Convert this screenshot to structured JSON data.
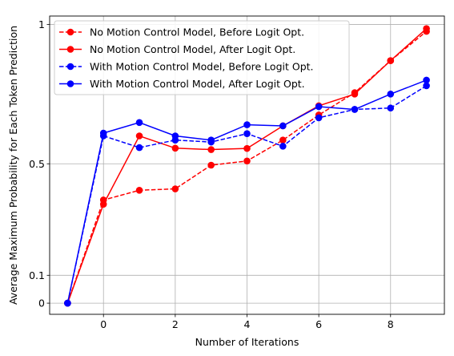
{
  "chart_data": {
    "type": "line",
    "title": "",
    "xlabel": "Number of Iterations",
    "ylabel": "Average Maximum Probability for Each Token Prediction",
    "xlim": [
      -1.5,
      9.5
    ],
    "ylim": [
      -0.04,
      1.03
    ],
    "xticks": [
      0,
      2,
      4,
      6,
      8
    ],
    "xtick_labels": [
      "0",
      "2",
      "4",
      "6",
      "8"
    ],
    "yticks": [
      0,
      0.1,
      0.5,
      1
    ],
    "ytick_labels": [
      "0",
      "0.1",
      "0.5",
      "1"
    ],
    "grid": true,
    "legend_position": "upper-left",
    "x": [
      -1,
      0,
      1,
      2,
      3,
      4,
      5,
      6,
      7,
      8,
      9
    ],
    "series": [
      {
        "name": "No Motion Control Model, Before Logit Opt.",
        "color": "#ff0000",
        "style": "dashed",
        "values": [
          0.0,
          0.37,
          0.405,
          0.41,
          0.495,
          0.51,
          0.585,
          0.675,
          0.755,
          0.87,
          0.975
        ]
      },
      {
        "name": "No Motion Control Model, After Logit Opt.",
        "color": "#ff0000",
        "style": "solid",
        "values": [
          0.0,
          0.355,
          0.6,
          0.556,
          0.551,
          0.555,
          0.636,
          0.708,
          0.75,
          0.87,
          0.985
        ]
      },
      {
        "name": "With Motion Control Model, Before Logit Opt.",
        "color": "#0000ff",
        "style": "dashed",
        "values": [
          0.0,
          0.6,
          0.558,
          0.585,
          0.578,
          0.608,
          0.563,
          0.665,
          0.695,
          0.7,
          0.78
        ]
      },
      {
        "name": "With Motion Control Model, After Logit Opt.",
        "color": "#0000ff",
        "style": "solid",
        "values": [
          0.0,
          0.61,
          0.648,
          0.6,
          0.585,
          0.64,
          0.636,
          0.705,
          0.695,
          0.75,
          0.8
        ]
      }
    ]
  }
}
